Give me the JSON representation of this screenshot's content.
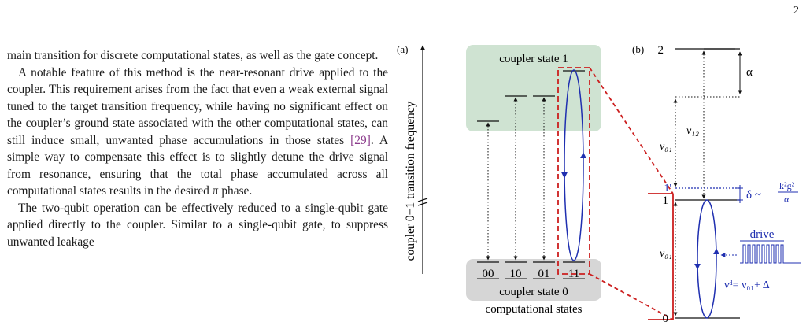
{
  "page": {
    "number": "2"
  },
  "text": {
    "p1": "main transition for discrete computational states, as well as the gate concept.",
    "p2_pre": "A notable feature of this method is the near-resonant drive applied to the coupler. This requirement arises from the fact that even a weak external signal tuned to the target transition frequency, while having no significant effect on the coupler’s ground state associated with the other computational states, can still induce small, unwanted phase accumulations in those states ",
    "p2_cite": "[29]",
    "p2_post": ". A simple way to compensate this effect is to slightly detune the drive signal from resonance, ensuring that the total phase accumulated across all computational states results in the desired π phase.",
    "p3": "The two-qubit operation can be effectively reduced to a single-qubit gate applied directly to the coupler. Similar to a single-qubit gate, to suppress unwanted leakage"
  },
  "figure": {
    "panel_a": {
      "label": "(a)",
      "axis_label": "coupler 0−1 transition frequency",
      "top_box_label": "coupler state  1",
      "bottom_box_label": "coupler state  0",
      "states": [
        "00",
        "10",
        "01",
        "11"
      ],
      "caption": "computational states"
    },
    "panel_b": {
      "label": "(b)",
      "levels": [
        "2",
        "1'",
        "1",
        "0"
      ],
      "alpha": "α",
      "nu12": "ν₁₂",
      "nu01": "ν₀₁",
      "nu01_lower": "ν₀₁",
      "delta_lhs": "δ ~",
      "delta_num": "k²g²",
      "delta_den": "α",
      "drive_label": "drive",
      "drive_freq": "νᵈ= ν₀₁+ Δ"
    },
    "colors": {
      "green_box": "#cfe3d2",
      "gray_box": "#d6d6d6",
      "dashed_red": "#cc1f1f",
      "blue": "#1f2fb0"
    }
  }
}
